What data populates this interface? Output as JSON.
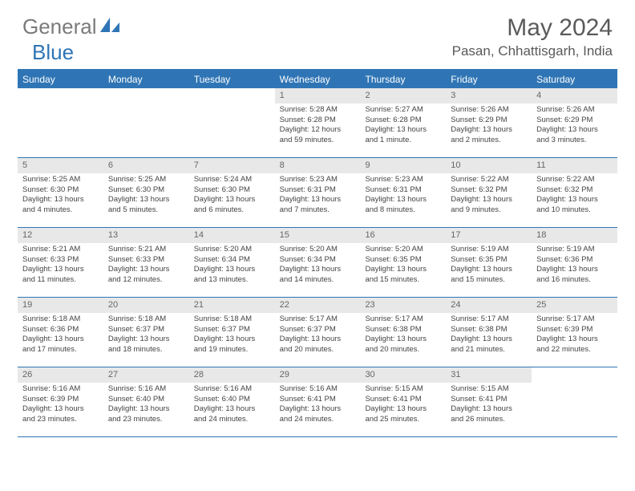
{
  "logo": {
    "gray_text": "General",
    "blue_text": "Blue"
  },
  "title": {
    "month_year": "May 2024",
    "location": "Pasan, Chhattisgarh, India"
  },
  "colors": {
    "header_bg": "#2f75b5",
    "cell_num_bg": "#e8e8e8"
  },
  "day_names": [
    "Sunday",
    "Monday",
    "Tuesday",
    "Wednesday",
    "Thursday",
    "Friday",
    "Saturday"
  ],
  "weeks": [
    [
      {
        "n": "",
        "sr": "",
        "ss": "",
        "dl": ""
      },
      {
        "n": "",
        "sr": "",
        "ss": "",
        "dl": ""
      },
      {
        "n": "",
        "sr": "",
        "ss": "",
        "dl": ""
      },
      {
        "n": "1",
        "sr": "Sunrise: 5:28 AM",
        "ss": "Sunset: 6:28 PM",
        "dl": "Daylight: 12 hours and 59 minutes."
      },
      {
        "n": "2",
        "sr": "Sunrise: 5:27 AM",
        "ss": "Sunset: 6:28 PM",
        "dl": "Daylight: 13 hours and 1 minute."
      },
      {
        "n": "3",
        "sr": "Sunrise: 5:26 AM",
        "ss": "Sunset: 6:29 PM",
        "dl": "Daylight: 13 hours and 2 minutes."
      },
      {
        "n": "4",
        "sr": "Sunrise: 5:26 AM",
        "ss": "Sunset: 6:29 PM",
        "dl": "Daylight: 13 hours and 3 minutes."
      }
    ],
    [
      {
        "n": "5",
        "sr": "Sunrise: 5:25 AM",
        "ss": "Sunset: 6:30 PM",
        "dl": "Daylight: 13 hours and 4 minutes."
      },
      {
        "n": "6",
        "sr": "Sunrise: 5:25 AM",
        "ss": "Sunset: 6:30 PM",
        "dl": "Daylight: 13 hours and 5 minutes."
      },
      {
        "n": "7",
        "sr": "Sunrise: 5:24 AM",
        "ss": "Sunset: 6:30 PM",
        "dl": "Daylight: 13 hours and 6 minutes."
      },
      {
        "n": "8",
        "sr": "Sunrise: 5:23 AM",
        "ss": "Sunset: 6:31 PM",
        "dl": "Daylight: 13 hours and 7 minutes."
      },
      {
        "n": "9",
        "sr": "Sunrise: 5:23 AM",
        "ss": "Sunset: 6:31 PM",
        "dl": "Daylight: 13 hours and 8 minutes."
      },
      {
        "n": "10",
        "sr": "Sunrise: 5:22 AM",
        "ss": "Sunset: 6:32 PM",
        "dl": "Daylight: 13 hours and 9 minutes."
      },
      {
        "n": "11",
        "sr": "Sunrise: 5:22 AM",
        "ss": "Sunset: 6:32 PM",
        "dl": "Daylight: 13 hours and 10 minutes."
      }
    ],
    [
      {
        "n": "12",
        "sr": "Sunrise: 5:21 AM",
        "ss": "Sunset: 6:33 PM",
        "dl": "Daylight: 13 hours and 11 minutes."
      },
      {
        "n": "13",
        "sr": "Sunrise: 5:21 AM",
        "ss": "Sunset: 6:33 PM",
        "dl": "Daylight: 13 hours and 12 minutes."
      },
      {
        "n": "14",
        "sr": "Sunrise: 5:20 AM",
        "ss": "Sunset: 6:34 PM",
        "dl": "Daylight: 13 hours and 13 minutes."
      },
      {
        "n": "15",
        "sr": "Sunrise: 5:20 AM",
        "ss": "Sunset: 6:34 PM",
        "dl": "Daylight: 13 hours and 14 minutes."
      },
      {
        "n": "16",
        "sr": "Sunrise: 5:20 AM",
        "ss": "Sunset: 6:35 PM",
        "dl": "Daylight: 13 hours and 15 minutes."
      },
      {
        "n": "17",
        "sr": "Sunrise: 5:19 AM",
        "ss": "Sunset: 6:35 PM",
        "dl": "Daylight: 13 hours and 15 minutes."
      },
      {
        "n": "18",
        "sr": "Sunrise: 5:19 AM",
        "ss": "Sunset: 6:36 PM",
        "dl": "Daylight: 13 hours and 16 minutes."
      }
    ],
    [
      {
        "n": "19",
        "sr": "Sunrise: 5:18 AM",
        "ss": "Sunset: 6:36 PM",
        "dl": "Daylight: 13 hours and 17 minutes."
      },
      {
        "n": "20",
        "sr": "Sunrise: 5:18 AM",
        "ss": "Sunset: 6:37 PM",
        "dl": "Daylight: 13 hours and 18 minutes."
      },
      {
        "n": "21",
        "sr": "Sunrise: 5:18 AM",
        "ss": "Sunset: 6:37 PM",
        "dl": "Daylight: 13 hours and 19 minutes."
      },
      {
        "n": "22",
        "sr": "Sunrise: 5:17 AM",
        "ss": "Sunset: 6:37 PM",
        "dl": "Daylight: 13 hours and 20 minutes."
      },
      {
        "n": "23",
        "sr": "Sunrise: 5:17 AM",
        "ss": "Sunset: 6:38 PM",
        "dl": "Daylight: 13 hours and 20 minutes."
      },
      {
        "n": "24",
        "sr": "Sunrise: 5:17 AM",
        "ss": "Sunset: 6:38 PM",
        "dl": "Daylight: 13 hours and 21 minutes."
      },
      {
        "n": "25",
        "sr": "Sunrise: 5:17 AM",
        "ss": "Sunset: 6:39 PM",
        "dl": "Daylight: 13 hours and 22 minutes."
      }
    ],
    [
      {
        "n": "26",
        "sr": "Sunrise: 5:16 AM",
        "ss": "Sunset: 6:39 PM",
        "dl": "Daylight: 13 hours and 23 minutes."
      },
      {
        "n": "27",
        "sr": "Sunrise: 5:16 AM",
        "ss": "Sunset: 6:40 PM",
        "dl": "Daylight: 13 hours and 23 minutes."
      },
      {
        "n": "28",
        "sr": "Sunrise: 5:16 AM",
        "ss": "Sunset: 6:40 PM",
        "dl": "Daylight: 13 hours and 24 minutes."
      },
      {
        "n": "29",
        "sr": "Sunrise: 5:16 AM",
        "ss": "Sunset: 6:41 PM",
        "dl": "Daylight: 13 hours and 24 minutes."
      },
      {
        "n": "30",
        "sr": "Sunrise: 5:15 AM",
        "ss": "Sunset: 6:41 PM",
        "dl": "Daylight: 13 hours and 25 minutes."
      },
      {
        "n": "31",
        "sr": "Sunrise: 5:15 AM",
        "ss": "Sunset: 6:41 PM",
        "dl": "Daylight: 13 hours and 26 minutes."
      },
      {
        "n": "",
        "sr": "",
        "ss": "",
        "dl": ""
      }
    ]
  ]
}
